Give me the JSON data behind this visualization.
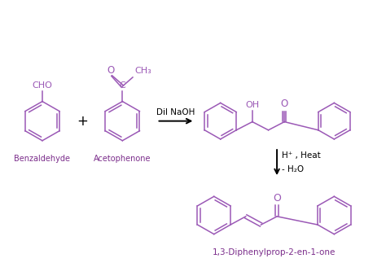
{
  "bg_color": "#ffffff",
  "molecule_color": "#9b59b6",
  "text_color": "#7b2d8b",
  "arrow_color": "#000000",
  "label_color": "#7b2d8b",
  "reagent1_label": "Benzaldehyde",
  "reagent2_label": "Acetophenone",
  "product2_label": "1,3-Diphenylprop-2-en-1-one",
  "step1_reagent": "Dil NaOH",
  "step2_reagent_line1": "H⁺ , Heat",
  "step2_reagent_line2": "- H₂O",
  "figsize": [
    4.74,
    3.39
  ],
  "dpi": 100
}
